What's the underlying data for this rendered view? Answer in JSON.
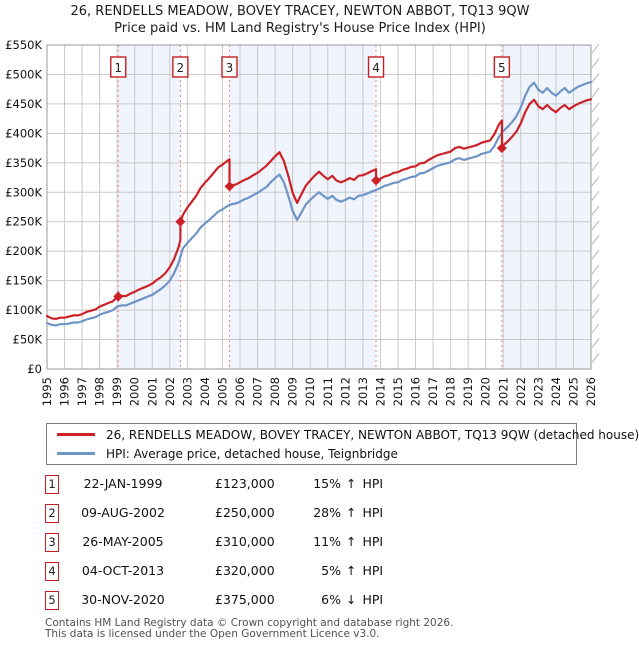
{
  "header": {
    "title_line1": "26, RENDELLS MEADOW, BOVEY TRACEY, NEWTON ABBOT, TQ13 9QW",
    "title_line2": "Price paid vs. HM Land Registry's House Price Index (HPI)"
  },
  "footer": {
    "line1": "Contains HM Land Registry data © Crown copyright and database right 2026.",
    "line2": "This data is licensed under the Open Government Licence v3.0."
  },
  "chart_data": {
    "type": "line",
    "x_axis": {
      "min": 1995,
      "max": 2026,
      "years": [
        1995,
        1996,
        1997,
        1998,
        1999,
        2000,
        2001,
        2002,
        2003,
        2004,
        2005,
        2006,
        2007,
        2008,
        2009,
        2010,
        2011,
        2012,
        2013,
        2014,
        2015,
        2016,
        2017,
        2018,
        2019,
        2020,
        2021,
        2022,
        2023,
        2024,
        2025,
        2026
      ]
    },
    "y_axis": {
      "min_k": 0,
      "max_k": 550,
      "step_k": 50,
      "tick_labels": [
        "£0",
        "£50K",
        "£100K",
        "£150K",
        "£200K",
        "£250K",
        "£300K",
        "£350K",
        "£400K",
        "£450K",
        "£500K",
        "£550K"
      ]
    },
    "grid": true,
    "legend_position": "below",
    "colors": {
      "price_line": "#cc2227",
      "hpi_line": "#6e94c8",
      "band": "#f0f4fc",
      "grid": "#c9c9c9",
      "frame": "#9a9a9a",
      "sale_line": "#ef8383",
      "marker_border": "#c41e23",
      "hatch": "#b4b4b4",
      "text": "#111111"
    },
    "bands": [
      [
        1999.06,
        2002.6
      ],
      [
        2005.4,
        2013.75
      ],
      [
        2020.92,
        2026
      ]
    ],
    "series": [
      {
        "name": "26, RENDELLS MEADOW, BOVEY TRACEY, NEWTON ABBOT, TQ13 9QW (detached house)",
        "color": "#cc2227",
        "points_year_gbpk": [
          [
            1995,
            90
          ],
          [
            1995.25,
            86
          ],
          [
            1995.5,
            85
          ],
          [
            1995.75,
            87
          ],
          [
            1996,
            87
          ],
          [
            1996.25,
            89
          ],
          [
            1996.5,
            91
          ],
          [
            1996.75,
            91
          ],
          [
            1997,
            93
          ],
          [
            1997.25,
            97
          ],
          [
            1997.5,
            99
          ],
          [
            1997.75,
            101
          ],
          [
            1998,
            106
          ],
          [
            1998.25,
            109
          ],
          [
            1998.5,
            112
          ],
          [
            1998.75,
            115
          ],
          [
            1999,
            122
          ],
          [
            1999.25,
            124
          ],
          [
            1999.5,
            124
          ],
          [
            1999.75,
            128
          ],
          [
            2000,
            131
          ],
          [
            2000.25,
            135
          ],
          [
            2000.5,
            138
          ],
          [
            2000.75,
            141
          ],
          [
            2001,
            145
          ],
          [
            2001.25,
            151
          ],
          [
            2001.5,
            156
          ],
          [
            2001.75,
            163
          ],
          [
            2002,
            173
          ],
          [
            2002.25,
            187
          ],
          [
            2002.5,
            207
          ],
          [
            2002.6,
            219
          ],
          [
            2002.6,
            250
          ],
          [
            2002.75,
            262
          ],
          [
            2003,
            274
          ],
          [
            2003.25,
            284
          ],
          [
            2003.5,
            294
          ],
          [
            2003.75,
            307
          ],
          [
            2004,
            316
          ],
          [
            2004.25,
            324
          ],
          [
            2004.5,
            333
          ],
          [
            2004.75,
            342
          ],
          [
            2005,
            347
          ],
          [
            2005.25,
            353
          ],
          [
            2005.4,
            356
          ],
          [
            2005.4,
            310
          ],
          [
            2005.5,
            312
          ],
          [
            2005.75,
            313
          ],
          [
            2006,
            317
          ],
          [
            2006.25,
            321
          ],
          [
            2006.5,
            324
          ],
          [
            2006.75,
            329
          ],
          [
            2007,
            333
          ],
          [
            2007.25,
            339
          ],
          [
            2007.5,
            345
          ],
          [
            2007.75,
            353
          ],
          [
            2008,
            361
          ],
          [
            2008.25,
            368
          ],
          [
            2008.5,
            353
          ],
          [
            2008.75,
            328
          ],
          [
            2009,
            299
          ],
          [
            2009.25,
            282
          ],
          [
            2009.5,
            297
          ],
          [
            2009.75,
            311
          ],
          [
            2010,
            320
          ],
          [
            2010.25,
            328
          ],
          [
            2010.5,
            335
          ],
          [
            2010.75,
            328
          ],
          [
            2011,
            322
          ],
          [
            2011.25,
            328
          ],
          [
            2011.5,
            320
          ],
          [
            2011.75,
            317
          ],
          [
            2012,
            320
          ],
          [
            2012.25,
            324
          ],
          [
            2012.5,
            321
          ],
          [
            2012.75,
            328
          ],
          [
            2013,
            329
          ],
          [
            2013.25,
            332
          ],
          [
            2013.5,
            336
          ],
          [
            2013.75,
            339
          ],
          [
            2013.76,
            320
          ],
          [
            2014,
            323
          ],
          [
            2014.25,
            327
          ],
          [
            2014.5,
            329
          ],
          [
            2014.75,
            333
          ],
          [
            2015,
            334
          ],
          [
            2015.25,
            338
          ],
          [
            2015.5,
            340
          ],
          [
            2015.75,
            343
          ],
          [
            2016,
            344
          ],
          [
            2016.25,
            349
          ],
          [
            2016.5,
            350
          ],
          [
            2016.75,
            355
          ],
          [
            2017,
            359
          ],
          [
            2017.25,
            363
          ],
          [
            2017.5,
            365
          ],
          [
            2017.75,
            367
          ],
          [
            2018,
            369
          ],
          [
            2018.25,
            375
          ],
          [
            2018.5,
            377
          ],
          [
            2018.75,
            374
          ],
          [
            2019,
            376
          ],
          [
            2019.25,
            378
          ],
          [
            2019.5,
            380
          ],
          [
            2019.75,
            384
          ],
          [
            2020,
            386
          ],
          [
            2020.25,
            388
          ],
          [
            2020.5,
            399
          ],
          [
            2020.75,
            415
          ],
          [
            2020.92,
            422
          ],
          [
            2020.92,
            375
          ],
          [
            2021,
            380
          ],
          [
            2021.25,
            386
          ],
          [
            2021.5,
            394
          ],
          [
            2021.75,
            403
          ],
          [
            2022,
            417
          ],
          [
            2022.25,
            436
          ],
          [
            2022.5,
            450
          ],
          [
            2022.75,
            457
          ],
          [
            2023,
            446
          ],
          [
            2023.25,
            441
          ],
          [
            2023.5,
            448
          ],
          [
            2023.75,
            441
          ],
          [
            2024,
            436
          ],
          [
            2024.25,
            443
          ],
          [
            2024.5,
            448
          ],
          [
            2024.75,
            441
          ],
          [
            2025,
            446
          ],
          [
            2025.25,
            450
          ],
          [
            2025.5,
            453
          ],
          [
            2025.75,
            456
          ],
          [
            2026,
            458
          ]
        ]
      },
      {
        "name": "HPI: Average price, detached house, Teignbridge",
        "color": "#6e94c8",
        "points_year_gbpk": [
          [
            1995,
            78
          ],
          [
            1995.25,
            75
          ],
          [
            1995.5,
            74
          ],
          [
            1995.75,
            76
          ],
          [
            1996,
            76
          ],
          [
            1996.25,
            77
          ],
          [
            1996.5,
            79
          ],
          [
            1996.75,
            79
          ],
          [
            1997,
            81
          ],
          [
            1997.25,
            84
          ],
          [
            1997.5,
            86
          ],
          [
            1997.75,
            88
          ],
          [
            1998,
            92
          ],
          [
            1998.25,
            95
          ],
          [
            1998.5,
            97
          ],
          [
            1998.75,
            100
          ],
          [
            1999,
            106
          ],
          [
            1999.25,
            108
          ],
          [
            1999.5,
            108
          ],
          [
            1999.75,
            111
          ],
          [
            2000,
            114
          ],
          [
            2000.25,
            117
          ],
          [
            2000.5,
            120
          ],
          [
            2000.75,
            123
          ],
          [
            2001,
            126
          ],
          [
            2001.25,
            131
          ],
          [
            2001.5,
            136
          ],
          [
            2001.75,
            142
          ],
          [
            2002,
            150
          ],
          [
            2002.25,
            163
          ],
          [
            2002.5,
            180
          ],
          [
            2002.75,
            205
          ],
          [
            2003,
            214
          ],
          [
            2003.25,
            222
          ],
          [
            2003.5,
            230
          ],
          [
            2003.75,
            240
          ],
          [
            2004,
            247
          ],
          [
            2004.25,
            253
          ],
          [
            2004.5,
            260
          ],
          [
            2004.75,
            267
          ],
          [
            2005,
            271
          ],
          [
            2005.25,
            276
          ],
          [
            2005.5,
            280
          ],
          [
            2005.75,
            281
          ],
          [
            2006,
            284
          ],
          [
            2006.25,
            288
          ],
          [
            2006.5,
            291
          ],
          [
            2006.75,
            295
          ],
          [
            2007,
            299
          ],
          [
            2007.25,
            304
          ],
          [
            2007.5,
            309
          ],
          [
            2007.75,
            317
          ],
          [
            2008,
            324
          ],
          [
            2008.25,
            330
          ],
          [
            2008.5,
            317
          ],
          [
            2008.75,
            294
          ],
          [
            2009,
            268
          ],
          [
            2009.25,
            253
          ],
          [
            2009.5,
            266
          ],
          [
            2009.75,
            279
          ],
          [
            2010,
            287
          ],
          [
            2010.25,
            294
          ],
          [
            2010.5,
            300
          ],
          [
            2010.75,
            294
          ],
          [
            2011,
            289
          ],
          [
            2011.25,
            294
          ],
          [
            2011.5,
            287
          ],
          [
            2011.75,
            284
          ],
          [
            2012,
            287
          ],
          [
            2012.25,
            291
          ],
          [
            2012.5,
            288
          ],
          [
            2012.75,
            294
          ],
          [
            2013,
            295
          ],
          [
            2013.25,
            298
          ],
          [
            2013.5,
            301
          ],
          [
            2013.75,
            304
          ],
          [
            2014,
            307
          ],
          [
            2014.25,
            311
          ],
          [
            2014.5,
            313
          ],
          [
            2014.75,
            316
          ],
          [
            2015,
            317
          ],
          [
            2015.25,
            321
          ],
          [
            2015.5,
            323
          ],
          [
            2015.75,
            326
          ],
          [
            2016,
            327
          ],
          [
            2016.25,
            332
          ],
          [
            2016.5,
            333
          ],
          [
            2016.75,
            337
          ],
          [
            2017,
            341
          ],
          [
            2017.25,
            345
          ],
          [
            2017.5,
            347
          ],
          [
            2017.75,
            349
          ],
          [
            2018,
            351
          ],
          [
            2018.25,
            356
          ],
          [
            2018.5,
            358
          ],
          [
            2018.75,
            355
          ],
          [
            2019,
            357
          ],
          [
            2019.25,
            359
          ],
          [
            2019.5,
            361
          ],
          [
            2019.75,
            365
          ],
          [
            2020,
            367
          ],
          [
            2020.25,
            369
          ],
          [
            2020.5,
            379
          ],
          [
            2020.75,
            394
          ],
          [
            2021,
            404
          ],
          [
            2021.25,
            411
          ],
          [
            2021.5,
            419
          ],
          [
            2021.75,
            429
          ],
          [
            2022,
            444
          ],
          [
            2022.25,
            464
          ],
          [
            2022.5,
            479
          ],
          [
            2022.75,
            486
          ],
          [
            2023,
            474
          ],
          [
            2023.25,
            469
          ],
          [
            2023.5,
            477
          ],
          [
            2023.75,
            469
          ],
          [
            2024,
            464
          ],
          [
            2024.25,
            471
          ],
          [
            2024.5,
            477
          ],
          [
            2024.75,
            469
          ],
          [
            2025,
            474
          ],
          [
            2025.25,
            479
          ],
          [
            2025.5,
            482
          ],
          [
            2025.75,
            485
          ],
          [
            2026,
            487
          ]
        ]
      }
    ],
    "sales": [
      {
        "n": "1",
        "t": 1999.06,
        "price_k": 123,
        "date": "22-JAN-1999",
        "price": "£123,000",
        "pct": "15%",
        "dir": "↑",
        "vs": "HPI"
      },
      {
        "n": "2",
        "t": 2002.6,
        "price_k": 250,
        "date": "09-AUG-2002",
        "price": "£250,000",
        "pct": "28%",
        "dir": "↑",
        "vs": "HPI"
      },
      {
        "n": "3",
        "t": 2005.4,
        "price_k": 310,
        "date": "26-MAY-2005",
        "price": "£310,000",
        "pct": "11%",
        "dir": "↑",
        "vs": "HPI"
      },
      {
        "n": "4",
        "t": 2013.75,
        "price_k": 320,
        "date": "04-OCT-2013",
        "price": "£320,000",
        "pct": "5%",
        "dir": "↑",
        "vs": "HPI"
      },
      {
        "n": "5",
        "t": 2020.92,
        "price_k": 375,
        "date": "30-NOV-2020",
        "price": "£375,000",
        "pct": "6%",
        "dir": "↓",
        "vs": "HPI"
      }
    ]
  }
}
